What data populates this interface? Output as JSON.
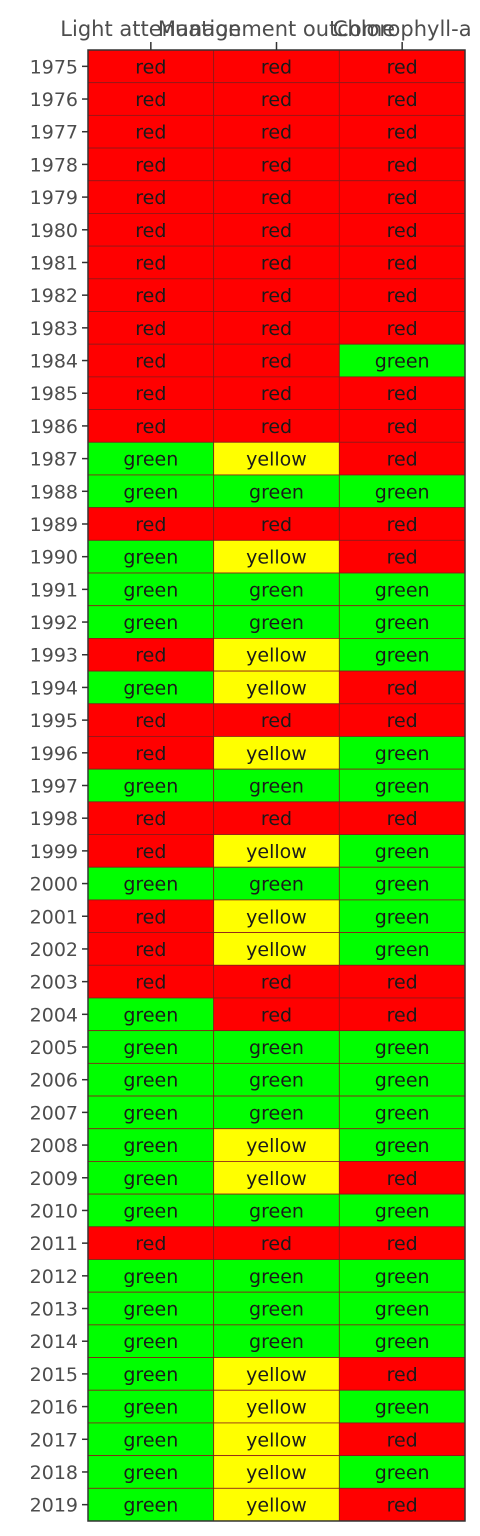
{
  "chart_data": {
    "type": "heatmap",
    "columns": [
      "Light attenuation",
      "Management outcome",
      "Chlorophyll-a"
    ],
    "rows": [
      "1975",
      "1976",
      "1977",
      "1978",
      "1979",
      "1980",
      "1981",
      "1982",
      "1983",
      "1984",
      "1985",
      "1986",
      "1987",
      "1988",
      "1989",
      "1990",
      "1991",
      "1992",
      "1993",
      "1994",
      "1995",
      "1996",
      "1997",
      "1998",
      "1999",
      "2000",
      "2001",
      "2002",
      "2003",
      "2004",
      "2005",
      "2006",
      "2007",
      "2008",
      "2009",
      "2010",
      "2011",
      "2012",
      "2013",
      "2014",
      "2015",
      "2016",
      "2017",
      "2018",
      "2019"
    ],
    "values": [
      [
        "red",
        "red",
        "red"
      ],
      [
        "red",
        "red",
        "red"
      ],
      [
        "red",
        "red",
        "red"
      ],
      [
        "red",
        "red",
        "red"
      ],
      [
        "red",
        "red",
        "red"
      ],
      [
        "red",
        "red",
        "red"
      ],
      [
        "red",
        "red",
        "red"
      ],
      [
        "red",
        "red",
        "red"
      ],
      [
        "red",
        "red",
        "red"
      ],
      [
        "red",
        "red",
        "green"
      ],
      [
        "red",
        "red",
        "red"
      ],
      [
        "red",
        "red",
        "red"
      ],
      [
        "green",
        "yellow",
        "red"
      ],
      [
        "green",
        "green",
        "green"
      ],
      [
        "red",
        "red",
        "red"
      ],
      [
        "green",
        "yellow",
        "red"
      ],
      [
        "green",
        "green",
        "green"
      ],
      [
        "green",
        "green",
        "green"
      ],
      [
        "red",
        "yellow",
        "green"
      ],
      [
        "green",
        "yellow",
        "red"
      ],
      [
        "red",
        "red",
        "red"
      ],
      [
        "red",
        "yellow",
        "green"
      ],
      [
        "green",
        "green",
        "green"
      ],
      [
        "red",
        "red",
        "red"
      ],
      [
        "red",
        "yellow",
        "green"
      ],
      [
        "green",
        "green",
        "green"
      ],
      [
        "red",
        "yellow",
        "green"
      ],
      [
        "red",
        "yellow",
        "green"
      ],
      [
        "red",
        "red",
        "red"
      ],
      [
        "green",
        "red",
        "red"
      ],
      [
        "green",
        "green",
        "green"
      ],
      [
        "green",
        "green",
        "green"
      ],
      [
        "green",
        "green",
        "green"
      ],
      [
        "green",
        "yellow",
        "green"
      ],
      [
        "green",
        "yellow",
        "red"
      ],
      [
        "green",
        "green",
        "green"
      ],
      [
        "red",
        "red",
        "red"
      ],
      [
        "green",
        "green",
        "green"
      ],
      [
        "green",
        "green",
        "green"
      ],
      [
        "green",
        "green",
        "green"
      ],
      [
        "green",
        "yellow",
        "red"
      ],
      [
        "green",
        "yellow",
        "green"
      ],
      [
        "green",
        "yellow",
        "red"
      ],
      [
        "green",
        "yellow",
        "green"
      ],
      [
        "green",
        "yellow",
        "red"
      ]
    ],
    "colors": {
      "red": "#ff0000",
      "green": "#00ff00",
      "yellow": "#ffff00"
    },
    "grid_line_color": "#8b1a1a",
    "legend": "none"
  }
}
